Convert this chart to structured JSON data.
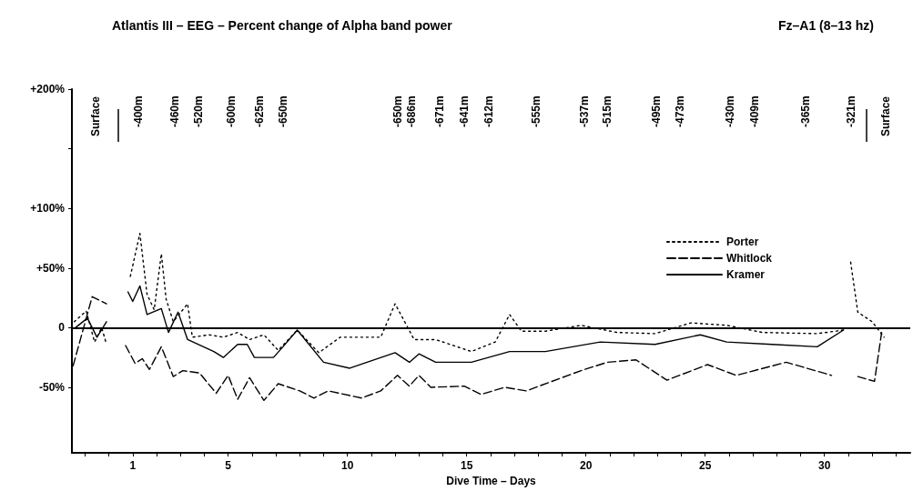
{
  "chart_data": {
    "type": "line",
    "title": "Atlantis III – EEG – Percent change of Alpha band power",
    "subtitle": "Fz–A1 (8–13 hz)",
    "xlabel": "Dive Time – Days",
    "xlim": [
      -1.55,
      33.6
    ],
    "xticks": [
      {
        "value": -1,
        "label": null
      },
      {
        "value": 0,
        "label": null
      },
      1,
      {
        "value": 2,
        "label": null
      },
      {
        "value": 3,
        "label": null
      },
      {
        "value": 4,
        "label": null
      },
      5,
      {
        "value": 6,
        "label": null
      },
      {
        "value": 7,
        "label": null
      },
      {
        "value": 8,
        "label": null
      },
      {
        "value": 9,
        "label": null
      },
      10,
      {
        "value": 11,
        "label": null
      },
      {
        "value": 12,
        "label": null
      },
      {
        "value": 13,
        "label": null
      },
      {
        "value": 14,
        "label": null
      },
      15,
      {
        "value": 16,
        "label": null
      },
      {
        "value": 17,
        "label": null
      },
      {
        "value": 18,
        "label": null
      },
      {
        "value": 19,
        "label": null
      },
      20,
      {
        "value": 21,
        "label": null
      },
      {
        "value": 22,
        "label": null
      },
      {
        "value": 23,
        "label": null
      },
      {
        "value": 24,
        "label": null
      },
      25,
      {
        "value": 26,
        "label": null
      },
      {
        "value": 27,
        "label": null
      },
      {
        "value": 28,
        "label": null
      },
      {
        "value": 29,
        "label": null
      },
      30,
      {
        "value": 31,
        "label": null
      },
      {
        "value": 32,
        "label": null
      },
      {
        "value": 33,
        "label": null
      }
    ],
    "ylim": [
      -105,
      200
    ],
    "yticks": [
      {
        "value": -50,
        "label": "-50%"
      },
      0,
      {
        "value": 50,
        "label": "+50%"
      },
      {
        "value": 100,
        "label": "+100%"
      },
      {
        "value": 150,
        "label": null
      },
      {
        "value": 200,
        "label": "+200%"
      }
    ],
    "grid": false,
    "legend": "top right",
    "marker": "none",
    "ref_lines": [
      {
        "axis": "y",
        "value": 0,
        "color": "#000000",
        "line_style": "solid"
      }
    ],
    "series": [
      {
        "name": "Porter",
        "color": "#000000",
        "line_style": "dotted",
        "x": [
          -1.45,
          -0.95,
          -0.6,
          -0.3,
          -0.1,
          0.4,
          0.9,
          1.3,
          1.6,
          1.9,
          2.2,
          2.4,
          2.7,
          3.3,
          3.5,
          4.2,
          4.8,
          5.4,
          5.9,
          6.5,
          7.1,
          7.9,
          8.8,
          9.7,
          11.4,
          12.0,
          12.8,
          13.7,
          15.2,
          16.2,
          16.8,
          17.3,
          18.3,
          19.8,
          21.3,
          22.9,
          24.4,
          25.9,
          27.4,
          29.7,
          30.8,
          31.0,
          31.1,
          31.4,
          32.0,
          32.5
        ],
        "values": [
          5,
          14,
          -12,
          0,
          -14,
          null,
          43,
          79,
          28,
          15,
          62,
          24,
          5,
          20,
          -8,
          -6,
          -8,
          -4,
          -10,
          -6,
          -19,
          -2,
          -21,
          -8,
          -8,
          20,
          -10,
          -10,
          -20,
          -12,
          11,
          -3,
          -3,
          2,
          -4,
          -5,
          4,
          2,
          -4,
          -5,
          -2,
          null,
          55,
          13,
          5,
          -8
        ]
      },
      {
        "name": "Whitlock",
        "color": "#000000",
        "line_style": "dashed",
        "x": [
          -1.5,
          -0.7,
          -0.1,
          0.3,
          0.7,
          1.1,
          1.4,
          1.7,
          2.2,
          2.7,
          3.1,
          3.8,
          4.5,
          5.0,
          5.4,
          5.9,
          6.5,
          7.1,
          8.0,
          8.6,
          9.2,
          10.6,
          11.4,
          12.1,
          12.6,
          13.0,
          13.5,
          14.9,
          15.6,
          16.6,
          17.5,
          19.8,
          20.9,
          22.1,
          23.4,
          25.1,
          26.3,
          28.4,
          30.3,
          31.0,
          31.4,
          32.1,
          32.4
        ],
        "values": [
          -32,
          26,
          20,
          null,
          -15,
          -30,
          -26,
          -35,
          -16,
          -41,
          -36,
          -38,
          -55,
          -40,
          -60,
          -42,
          -61,
          -47,
          -53,
          -59,
          -53,
          -59,
          -53,
          -40,
          -49,
          -40,
          -50,
          -49,
          -56,
          -50,
          -53,
          -36,
          -29,
          -27,
          -44,
          -31,
          -40,
          -29,
          -40,
          null,
          -41,
          -45,
          -4
        ]
      },
      {
        "name": "Kramer",
        "color": "#000000",
        "line_style": "solid",
        "x": [
          -1.4,
          -0.9,
          -0.5,
          -0.1,
          0.4,
          0.8,
          1.0,
          1.3,
          1.6,
          2.2,
          2.5,
          2.9,
          3.3,
          4.4,
          4.8,
          5.4,
          5.8,
          6.1,
          6.9,
          7.3,
          7.9,
          9.0,
          10.1,
          12.0,
          12.6,
          13.0,
          13.7,
          15.2,
          16.8,
          18.3,
          20.6,
          22.9,
          24.8,
          25.9,
          27.8,
          29.7,
          30.8
        ],
        "values": [
          0,
          8,
          -8,
          5,
          null,
          30,
          22,
          35,
          11,
          16,
          -4,
          13,
          -10,
          -20,
          -25,
          -14,
          -14,
          -25,
          -25,
          -16,
          -2,
          -29,
          -34,
          -21,
          -29,
          -22,
          -29,
          -29,
          -20,
          -20,
          -12,
          -14,
          -6,
          -12,
          -14,
          -16,
          -2
        ]
      }
    ],
    "annotations": [
      "Surface",
      "-400m",
      "-460m",
      "-520m",
      "-600m",
      "-625m",
      "-650m",
      "-650m",
      "-686m",
      "-671m",
      "-641m",
      "-612m",
      "-555m",
      "-537m",
      "-515m",
      "-495m",
      "-473m",
      "-430m",
      "-409m",
      "-365m",
      "-321m",
      "Surface"
    ]
  }
}
